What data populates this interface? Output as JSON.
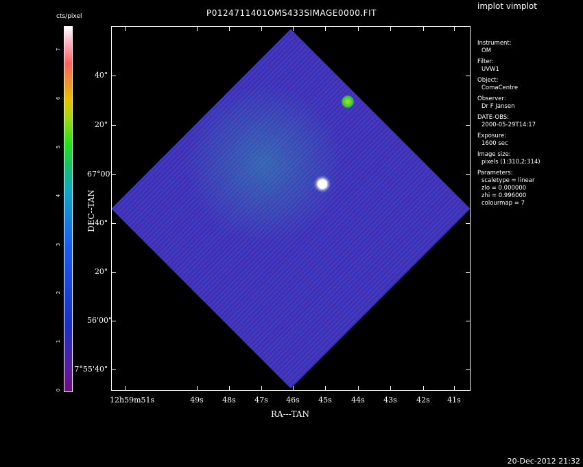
{
  "window": {
    "title": "P0124711401OMS433SIMAGE0000.FIT",
    "program": "implot vimplot",
    "timestamp": "20-Dec-2012 21:32"
  },
  "colorbar": {
    "label": "cts/pixel",
    "ticks": [
      "0",
      "1",
      "2",
      "3",
      "4",
      "5",
      "6",
      "7"
    ]
  },
  "axes": {
    "x_title": "RA---TAN",
    "y_title": "DEC--TAN",
    "x_ticks": [
      "12h59m51s",
      "49s",
      "48s",
      "47s",
      "46s",
      "45s",
      "44s",
      "43s",
      "42s",
      "41s"
    ],
    "y_ticks": [
      "40\"",
      "20\"",
      "67°00'",
      "40\"",
      "20\"",
      "56'00\"",
      "7°55'40\""
    ]
  },
  "info": [
    {
      "key": "Instrument:",
      "value": "OM"
    },
    {
      "key": "Filter:",
      "value": "UVW1"
    },
    {
      "key": "Object:",
      "value": "ComaCentre"
    },
    {
      "key": "Observer:",
      "value": "Dr F Jansen"
    },
    {
      "key": "DATE-OBS:",
      "value": "2000-05-29T14:17"
    },
    {
      "key": "Exposure:",
      "value": "1600 sec"
    },
    {
      "key": "Image size:",
      "value": "pixels (1:310,2:314)"
    },
    {
      "key": "Parameters:",
      "value": "scaletype = linear"
    },
    {
      "key": "",
      "value": "zlo = 0.000000"
    },
    {
      "key": "",
      "value": "zhi = 0.996000"
    },
    {
      "key": "",
      "value": "colourmap = 7"
    }
  ]
}
